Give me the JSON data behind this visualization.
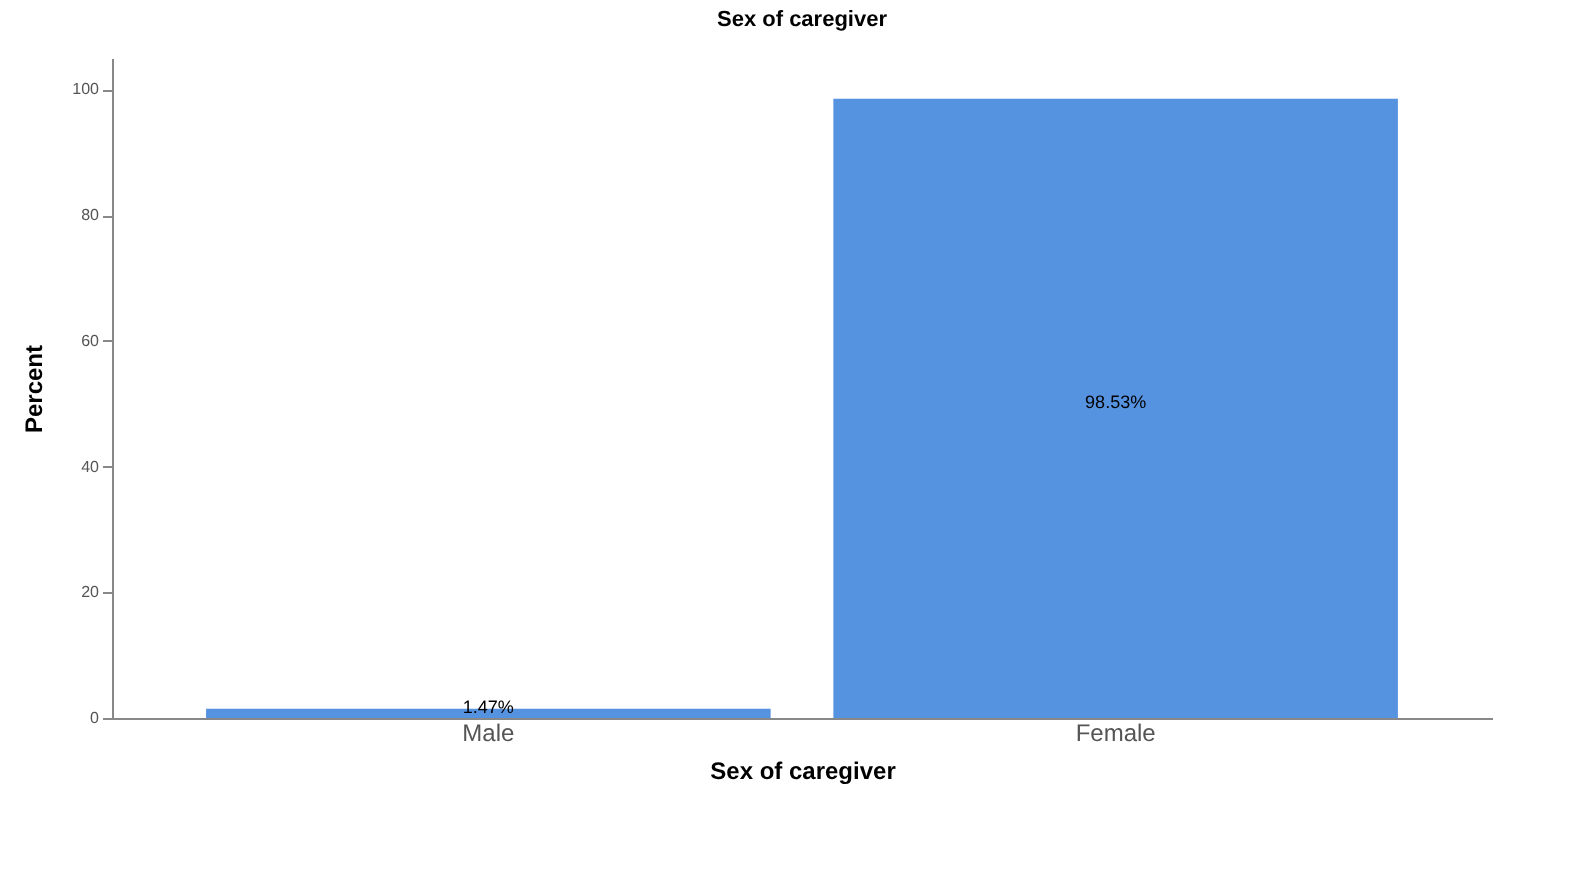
{
  "chart_data": {
    "type": "bar",
    "title": "Sex of caregiver",
    "xlabel": "Sex of caregiver",
    "ylabel": "Percent",
    "categories": [
      "Male",
      "Female"
    ],
    "values": [
      1.47,
      98.53
    ],
    "color": "#5592e0",
    "value_labels": [
      "1.47%",
      "98.53%"
    ],
    "ylim": [
      0,
      105
    ],
    "yticks": [
      0,
      20,
      40,
      60,
      80,
      100
    ],
    "grid": false
  }
}
